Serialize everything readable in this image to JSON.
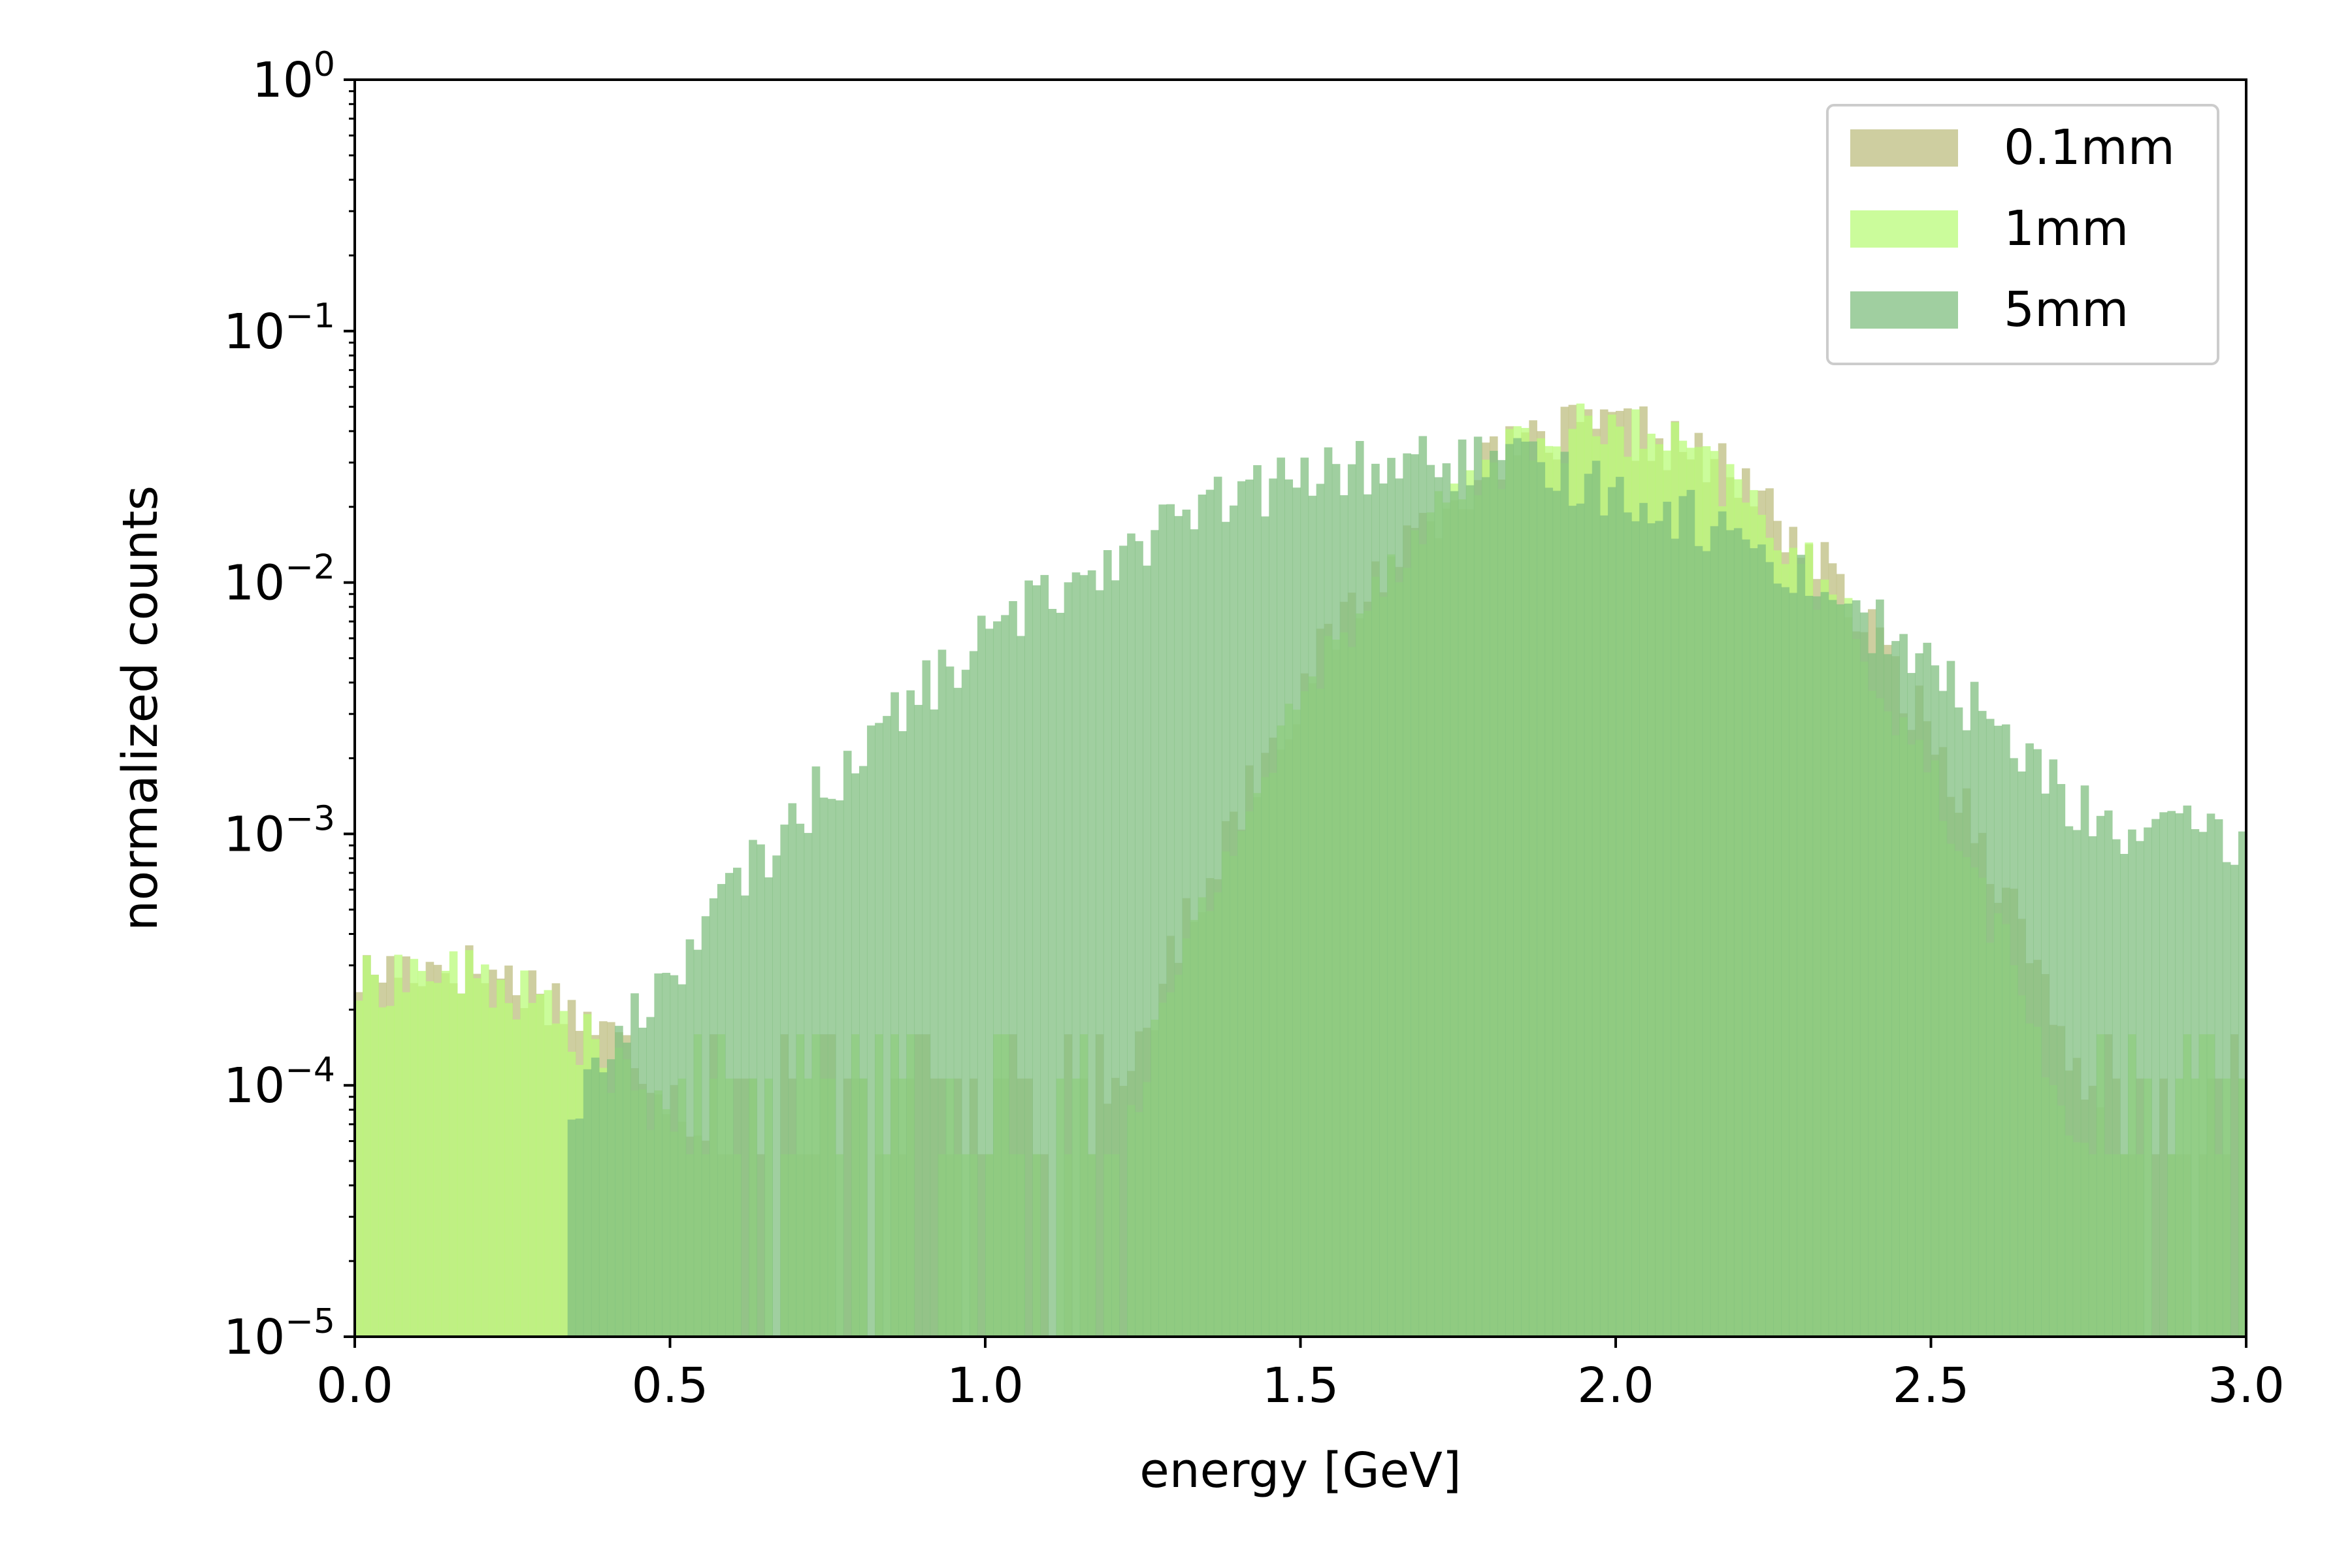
{
  "chart_data": {
    "type": "histogram",
    "xlabel": "energy [GeV]",
    "ylabel": "normalized counts",
    "xlim": [
      0.0,
      3.0
    ],
    "ylim": [
      1e-05,
      1
    ],
    "yscale": "log",
    "x_ticks": [
      {
        "value": 0.0,
        "label": "0.0"
      },
      {
        "value": 0.5,
        "label": "0.5"
      },
      {
        "value": 1.0,
        "label": "1.0"
      },
      {
        "value": 1.5,
        "label": "1.5"
      },
      {
        "value": 2.0,
        "label": "2.0"
      },
      {
        "value": 2.5,
        "label": "2.5"
      },
      {
        "value": 3.0,
        "label": "3.0"
      }
    ],
    "y_ticks": [
      {
        "value": 1,
        "base": "10",
        "exp": "0"
      },
      {
        "value": 0.1,
        "base": "10",
        "exp": "−1"
      },
      {
        "value": 0.01,
        "base": "10",
        "exp": "−2"
      },
      {
        "value": 0.001,
        "base": "10",
        "exp": "−3"
      },
      {
        "value": 0.0001,
        "base": "10",
        "exp": "−4"
      },
      {
        "value": 1e-05,
        "base": "10",
        "exp": "−5"
      }
    ],
    "legend_position": "top-right",
    "bin_edges": [
      0.0,
      3.0
    ],
    "num_bins": 240,
    "series": [
      {
        "name": "0.1mm",
        "color": "#bdbd80",
        "peaks": [
          {
            "center": 1.98,
            "sigma": 0.22,
            "amplitude": 0.04
          },
          {
            "center": 0.12,
            "sigma": 0.25,
            "amplitude": 0.0003
          }
        ],
        "floor": 2e-05,
        "x_range": [
          0.0,
          3.0
        ]
      },
      {
        "name": "1mm",
        "color": "#b9fb7a",
        "peaks": [
          {
            "center": 1.97,
            "sigma": 0.21,
            "amplitude": 0.04
          },
          {
            "center": 0.12,
            "sigma": 0.22,
            "amplitude": 0.00028
          }
        ],
        "floor": 2e-05,
        "x_range": [
          0.0,
          3.0
        ]
      },
      {
        "name": "5mm",
        "color": "#80bf80",
        "peaks": [
          {
            "center": 1.72,
            "sigma": 0.4,
            "amplitude": 0.03
          },
          {
            "center": 2.95,
            "sigma": 0.1,
            "amplitude": 0.0007
          }
        ],
        "floor": 2e-05,
        "x_range": [
          0.34,
          3.0
        ]
      }
    ]
  }
}
